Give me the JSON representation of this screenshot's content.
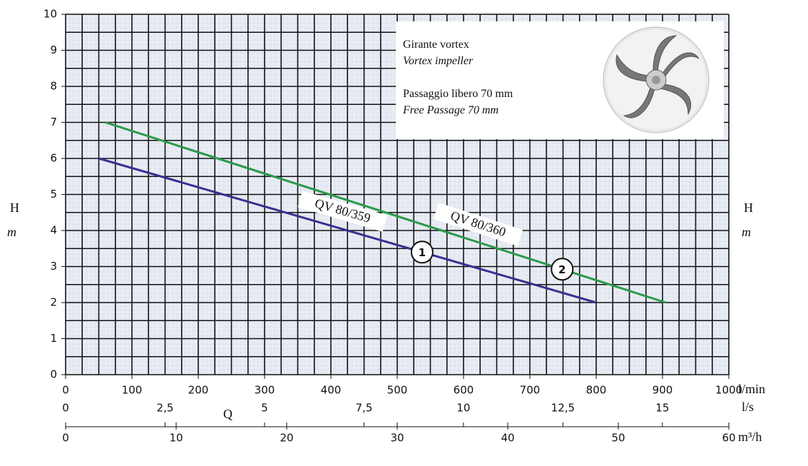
{
  "chart_data": {
    "type": "line",
    "x_label": "Q",
    "x_unit": "l/min",
    "y_label": "H",
    "y_unit": "m",
    "xlim": [
      0,
      1000
    ],
    "xticks": [
      0,
      100,
      200,
      300,
      400,
      500,
      600,
      700,
      800,
      900,
      1000
    ],
    "ylim": [
      0,
      10
    ],
    "yticks": [
      0,
      1,
      2,
      3,
      4,
      5,
      6,
      7,
      8,
      9,
      10
    ],
    "x2_unit": "l/s",
    "x2lim": [
      0,
      16.67
    ],
    "x2ticks": [
      0,
      {
        "value": 2.5,
        "label": "2,5"
      },
      5,
      {
        "value": 7.5,
        "label": "7,5"
      },
      10,
      {
        "value": 12.5,
        "label": "12,5"
      },
      15
    ],
    "x3_unit": "m³/h",
    "x3lim": [
      0,
      60
    ],
    "x3ticks": [
      0,
      10,
      20,
      30,
      40,
      50,
      60
    ],
    "grid": true,
    "series": [
      {
        "name": "QV 80/359",
        "marker": "1",
        "color": "#3a3090",
        "x": [
          50,
          800
        ],
        "values": [
          6,
          2
        ]
      },
      {
        "name": "QV 80/360",
        "marker": "2",
        "color": "#2a9a4a",
        "x": [
          60,
          905
        ],
        "values": [
          7,
          2
        ]
      }
    ],
    "inset": [
      "Girante vortex",
      "Vortex impeller",
      "Passaggio libero 70 mm",
      "Free Passage 70 mm"
    ]
  }
}
